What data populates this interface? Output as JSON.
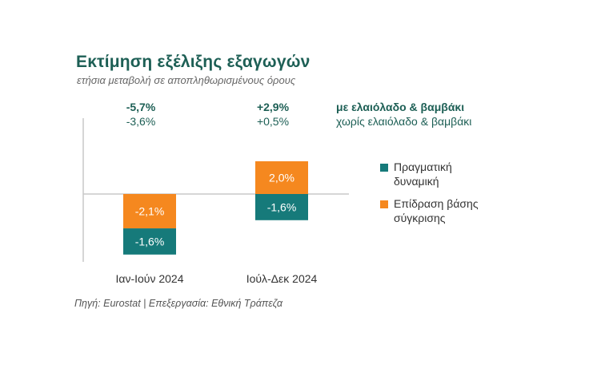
{
  "title": "Εκτίμηση εξέλιξης εξαγωγών",
  "subtitle": "ετήσια μεταβολή σε αποπληθωρισμένους όρους",
  "source": "Πηγή: Eurostat | Επεξεργασία: Εθνική Τράπεζα",
  "colors": {
    "real": "#167a7a",
    "base": "#f5881f",
    "title": "#1d5f55",
    "summary": "#1d5f55",
    "axis": "#c8c8c8"
  },
  "summary": {
    "row1_label": "με ελαιόλαδο & βαμβάκι",
    "row2_label": "χωρίς ελαιόλαδο & βαμβάκι",
    "values": [
      {
        "row1": "-5,7%",
        "row2": "-3,6%"
      },
      {
        "row1": "+2,9%",
        "row2": "+0,5%"
      }
    ]
  },
  "chart_data": {
    "type": "bar",
    "stacked": true,
    "categories": [
      "Ιαν-Ιούν 2024",
      "Ιούλ-Δεκ 2024"
    ],
    "series": [
      {
        "name": "Πραγματική δυναμική",
        "color": "#167a7a",
        "values": [
          -1.6,
          -1.6
        ],
        "labels": [
          "-1,6%",
          "-1,6%"
        ]
      },
      {
        "name": "Επίδραση βάσης σύγκρισης",
        "color": "#f5881f",
        "values": [
          -2.1,
          2.0
        ],
        "labels": [
          "-2,1%",
          "2,0%"
        ]
      }
    ],
    "legend": [
      {
        "line1": "Πραγματική",
        "line2": "δυναμική",
        "color": "#167a7a"
      },
      {
        "line1": "Επίδραση βάσης",
        "line2": "σύγκρισης",
        "color": "#f5881f"
      }
    ],
    "legend_position": "right",
    "grid": false
  }
}
